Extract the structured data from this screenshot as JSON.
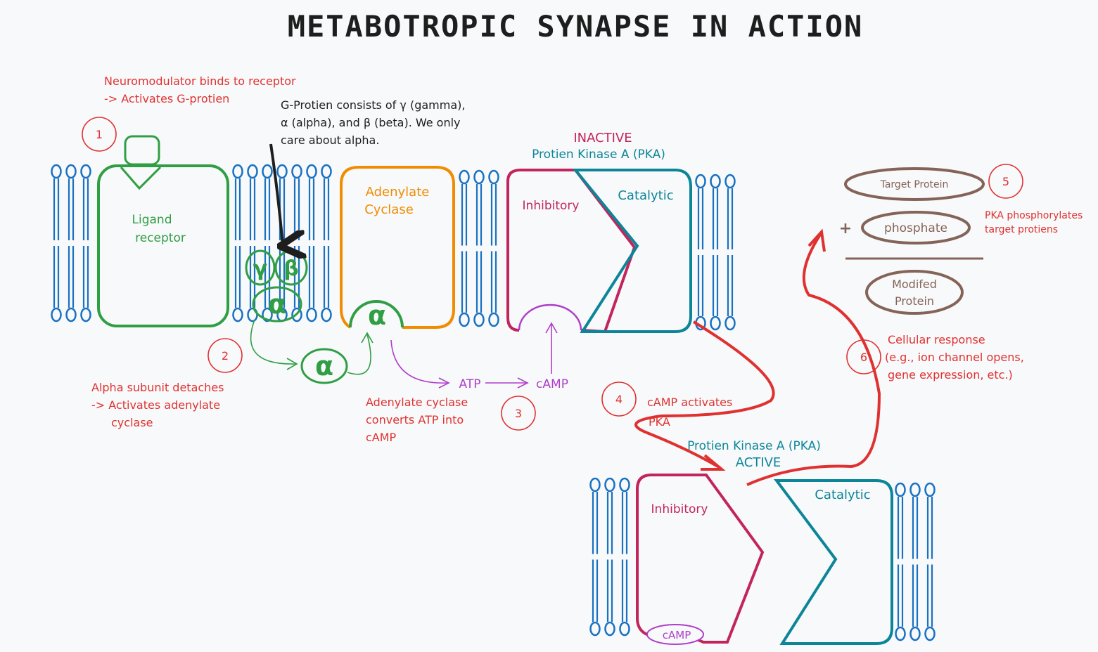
{
  "title": "METABOTROPIC SYNAPSE IN ACTION",
  "colors": {
    "membrane": "#1971c2",
    "green": "#2f9e44",
    "orange": "#f08c00",
    "crimson": "#c2255c",
    "teal": "#0c8599",
    "purple": "#ae3ec9",
    "red": "#e03131",
    "brown": "#846358",
    "black": "#1e1e1e"
  },
  "steps": {
    "s1": "1",
    "s2": "2",
    "s3": "3",
    "s4": "4",
    "s5": "5",
    "s6": "6"
  },
  "notes": {
    "step1_line1": "Neuromodulator binds to receptor",
    "step1_line2": "-> Activates G-protien",
    "gprotein_line1": "G-Protien consists of γ (gamma),",
    "gprotein_line2": "α (alpha), and β (beta). We only",
    "gprotein_line3": "care about alpha.",
    "step2_line1": "Alpha subunit detaches",
    "step2_line2": "-> Activates adenylate",
    "step2_line3": "cyclase",
    "step3_line1": "Adenylate cyclase",
    "step3_line2": "converts ATP into",
    "step3_line3": "cAMP",
    "step4_line1": "cAMP activates",
    "step4_line2": "PKA",
    "step5_line1": "PKA phosphorylates",
    "step5_line2": "target protiens",
    "step6_line1": "Cellular response",
    "step6_line2": "(e.g., ion channel opens,",
    "step6_line3": "gene expression, etc.)"
  },
  "labels": {
    "ligand1": "Ligand",
    "ligand2": "receptor",
    "adenylate1": "Adenylate",
    "adenylate2": "Cyclase",
    "inactive": "INACTIVE",
    "pka_inactive": "Protien Kinase A (PKA)",
    "inhibitory": "Inhibitory",
    "catalytic": "Catalytic",
    "pka_active": "Protien Kinase A (PKA)",
    "active": "ACTIVE",
    "inhibitory2": "Inhibitory",
    "catalytic2": "Catalytic",
    "gamma": "γ",
    "beta": "β",
    "alpha": "α",
    "alpha2": "α",
    "alpha3": "α",
    "atp": "ATP",
    "camp": "cAMP",
    "camp2": "cAMP",
    "target_protein": "Target Protein",
    "plus": "+",
    "phosphate": "phosphate",
    "modified1": "Modifed",
    "modified2": "Protein"
  }
}
